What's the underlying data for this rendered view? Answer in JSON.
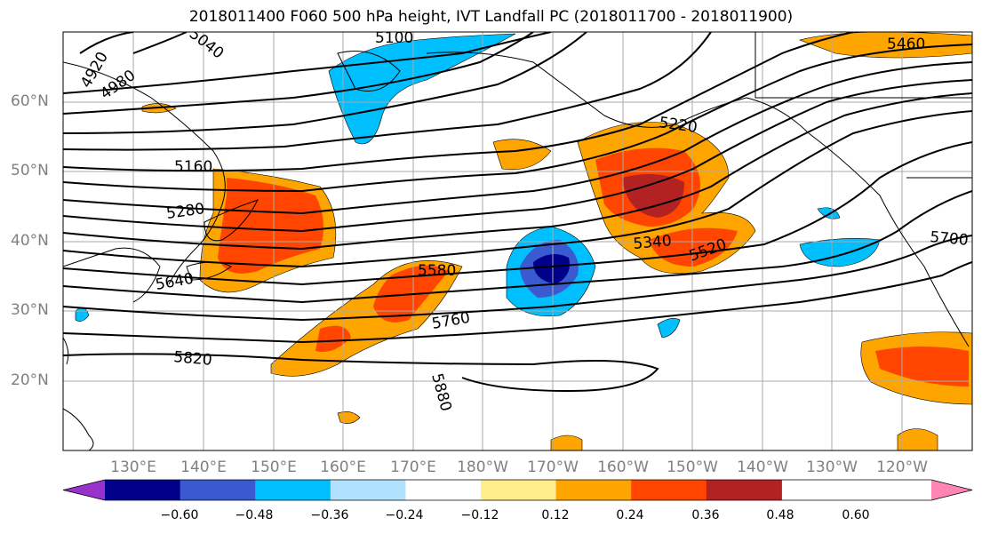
{
  "title": "2018011400 F060 500 hPa height, IVT Landfall PC (2018011700 - 2018011900)",
  "lat_labels": [
    "60°N",
    "50°N",
    "40°N",
    "30°N",
    "20°N"
  ],
  "lon_labels": [
    "130°E",
    "140°E",
    "150°E",
    "160°E",
    "170°E",
    "180°W",
    "170°W",
    "160°W",
    "150°W",
    "140°W",
    "130°W",
    "120°W"
  ],
  "contour_labels": [
    "5100",
    "5040",
    "4920",
    "4980",
    "5160",
    "5280",
    "5460",
    "5220",
    "5340",
    "5520",
    "5580",
    "5640",
    "5760",
    "5700",
    "5820",
    "5880"
  ],
  "colorbar": {
    "colors": [
      "#9932CC",
      "#00008B",
      "#3A5BCF",
      "#00BFFF",
      "#B0E2FF",
      "#FFFFFF",
      "#FFEC8B",
      "#FFA500",
      "#FF4500",
      "#B22222",
      "#FF85B3"
    ],
    "ticks": [
      "−0.60",
      "−0.48",
      "−0.36",
      "−0.24",
      "−0.12",
      "0.12",
      "0.24",
      "0.36",
      "0.48",
      "0.60"
    ]
  }
}
